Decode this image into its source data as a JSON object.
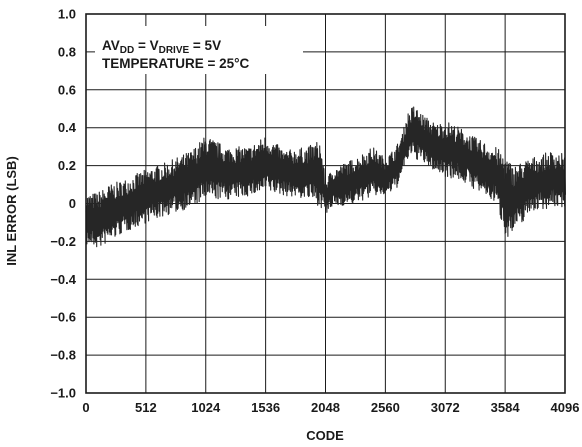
{
  "chart_data": {
    "type": "line",
    "xlabel": "CODE",
    "ylabel": "INL ERROR (LSB)",
    "xlim": [
      0,
      4096
    ],
    "ylim": [
      -1.0,
      1.0
    ],
    "x_ticks": [
      "0",
      "512",
      "1024",
      "1536",
      "2048",
      "2560",
      "3072",
      "3584",
      "4096"
    ],
    "y_ticks": [
      "1.0",
      "0.8",
      "0.6",
      "0.4",
      "0.2",
      "0",
      "−0.2",
      "−0.4",
      "−0.6",
      "−0.8",
      "−1.0"
    ],
    "grid": true,
    "annotation": {
      "line1": {
        "a": "AV",
        "a_sub": "DD",
        "b": " = V",
        "b_sub": "DRIVE",
        "c": " = 5V"
      },
      "line2": "TEMPERATURE = 25°C"
    },
    "series": [
      {
        "style": "dense vertical noise band",
        "envelope_x": [
          0,
          100,
          200,
          300,
          512,
          700,
          900,
          1024,
          1200,
          1400,
          1536,
          1700,
          1900,
          2000,
          2048,
          2100,
          2300,
          2450,
          2560,
          2650,
          2700,
          2750,
          2800,
          2900,
          3000,
          3072,
          3200,
          3350,
          3500,
          3584,
          3650,
          3800,
          4000,
          4096
        ],
        "envelope_max": [
          0.05,
          0.06,
          0.1,
          0.12,
          0.18,
          0.22,
          0.28,
          0.36,
          0.3,
          0.3,
          0.36,
          0.28,
          0.3,
          0.34,
          0.12,
          0.18,
          0.24,
          0.3,
          0.24,
          0.3,
          0.36,
          0.48,
          0.52,
          0.46,
          0.42,
          0.44,
          0.4,
          0.34,
          0.3,
          0.26,
          0.2,
          0.24,
          0.28,
          0.26
        ],
        "envelope_min": [
          -0.22,
          -0.24,
          -0.2,
          -0.16,
          -0.1,
          -0.06,
          -0.02,
          0.02,
          0.02,
          0.04,
          0.06,
          0.04,
          0.02,
          -0.02,
          -0.06,
          -0.02,
          0.0,
          0.04,
          0.04,
          0.08,
          0.16,
          0.24,
          0.24,
          0.2,
          0.16,
          0.14,
          0.12,
          0.06,
          0.0,
          -0.18,
          -0.16,
          -0.04,
          -0.02,
          -0.02
        ]
      }
    ]
  }
}
